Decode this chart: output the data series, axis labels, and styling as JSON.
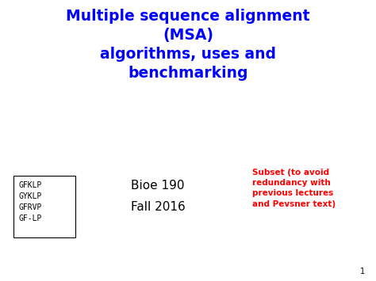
{
  "title_line1": "Multiple sequence alignment",
  "title_line2": "(MSA)",
  "title_line3": "algorithms, uses and",
  "title_line4": "benchmarking",
  "title_color": "#0000ff",
  "title_fontsize": 13.5,
  "bioe_text": "Bioe 190\nFall 2016",
  "bioe_color": "#000000",
  "bioe_fontsize": 11,
  "subset_text": "Subset (to avoid\nredundancy with\nprevious lectures\nand Pevsner text)",
  "subset_color": "#ff0000",
  "subset_fontsize": 7.5,
  "msa_lines": [
    "GFKLP",
    "GYKLP",
    "GFRVP",
    "GF-LP"
  ],
  "msa_color": "#000000",
  "msa_fontsize": 7,
  "page_number": "1",
  "background_color": "#ffffff"
}
